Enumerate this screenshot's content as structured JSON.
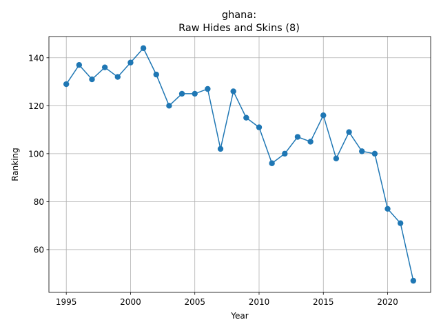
{
  "chart_data": {
    "type": "line",
    "title_line1": "ghana:",
    "title_line2": "Raw Hides and Skins (8)",
    "xlabel": "Year",
    "ylabel": "Ranking",
    "xlim": [
      1993.65,
      2023.35
    ],
    "ylim": [
      42.15,
      148.85
    ],
    "xticks": [
      1995,
      2000,
      2005,
      2010,
      2015,
      2020
    ],
    "yticks": [
      60,
      80,
      100,
      120,
      140
    ],
    "grid": true,
    "series": [
      {
        "color": "#1f77b4",
        "marker": "circle",
        "x": [
          1995,
          1996,
          1997,
          1998,
          1999,
          2000,
          2001,
          2002,
          2003,
          2004,
          2005,
          2006,
          2007,
          2008,
          2009,
          2010,
          2011,
          2012,
          2013,
          2014,
          2015,
          2016,
          2017,
          2018,
          2019,
          2020,
          2021,
          2022
        ],
        "y": [
          129,
          137,
          131,
          136,
          132,
          138,
          144,
          133,
          120,
          125,
          125,
          127,
          102,
          126,
          115,
          111,
          96,
          100,
          107,
          105,
          116,
          98,
          109,
          101,
          100,
          77,
          71,
          47
        ]
      }
    ]
  }
}
